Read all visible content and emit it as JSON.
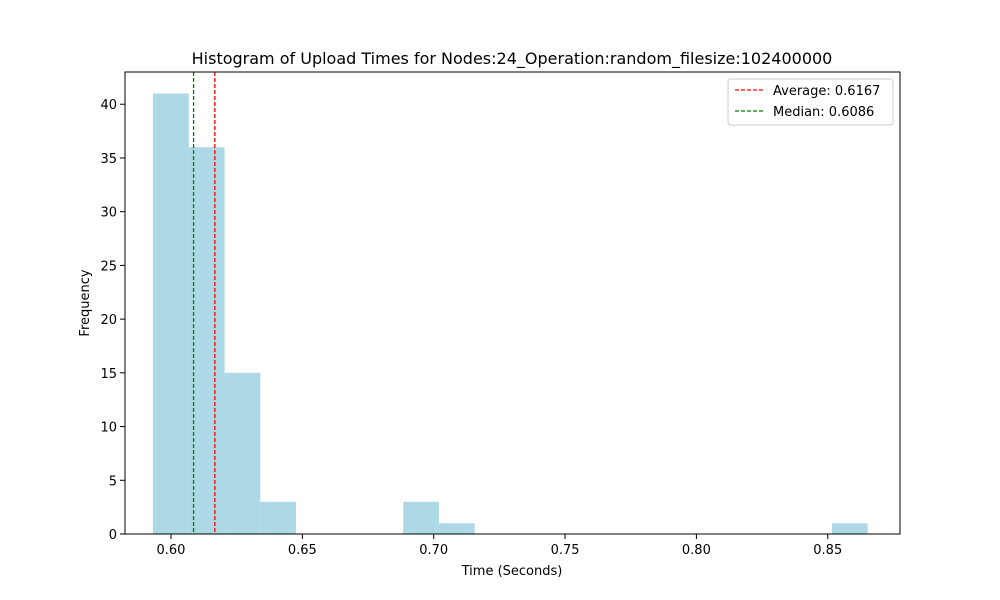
{
  "chart_data": {
    "type": "bar",
    "title": "Histogram of Upload Times for Nodes:24_Operation:random_filesize:102400000",
    "xlabel": "Time (Seconds)",
    "ylabel": "Frequency",
    "xlim": [
      0.5825,
      0.8775
    ],
    "ylim": [
      0,
      43
    ],
    "xticks": [
      0.6,
      0.65,
      0.7,
      0.75,
      0.8,
      0.85
    ],
    "xtick_labels": [
      "0.60",
      "0.65",
      "0.70",
      "0.75",
      "0.80",
      "0.85"
    ],
    "yticks": [
      0,
      5,
      10,
      15,
      20,
      25,
      30,
      35,
      40
    ],
    "ytick_labels": [
      "0",
      "5",
      "10",
      "15",
      "20",
      "25",
      "30",
      "35",
      "40"
    ],
    "bins": [
      {
        "start": 0.5931,
        "end": 0.6068,
        "count": 41
      },
      {
        "start": 0.6068,
        "end": 0.6204,
        "count": 36
      },
      {
        "start": 0.6204,
        "end": 0.634,
        "count": 15
      },
      {
        "start": 0.634,
        "end": 0.6476,
        "count": 3
      },
      {
        "start": 0.6476,
        "end": 0.6612,
        "count": 0
      },
      {
        "start": 0.6612,
        "end": 0.6748,
        "count": 0
      },
      {
        "start": 0.6748,
        "end": 0.6884,
        "count": 0
      },
      {
        "start": 0.6884,
        "end": 0.702,
        "count": 3
      },
      {
        "start": 0.702,
        "end": 0.7156,
        "count": 1
      },
      {
        "start": 0.7156,
        "end": 0.7292,
        "count": 0
      },
      {
        "start": 0.7292,
        "end": 0.7428,
        "count": 0
      },
      {
        "start": 0.7428,
        "end": 0.7564,
        "count": 0
      },
      {
        "start": 0.7564,
        "end": 0.77,
        "count": 0
      },
      {
        "start": 0.77,
        "end": 0.7836,
        "count": 0
      },
      {
        "start": 0.7836,
        "end": 0.7972,
        "count": 0
      },
      {
        "start": 0.7972,
        "end": 0.8108,
        "count": 0
      },
      {
        "start": 0.8108,
        "end": 0.8244,
        "count": 0
      },
      {
        "start": 0.8244,
        "end": 0.838,
        "count": 0
      },
      {
        "start": 0.838,
        "end": 0.8516,
        "count": 0
      },
      {
        "start": 0.8516,
        "end": 0.8652,
        "count": 1
      }
    ],
    "bar_color": "#add8e6",
    "lines": [
      {
        "name": "average",
        "label": "Average: 0.6167",
        "x": 0.6167,
        "color": "#ff0000",
        "style": "dashed"
      },
      {
        "name": "median",
        "label": "Median: 0.6086",
        "x": 0.6086,
        "color": "#008000",
        "style": "dashed"
      }
    ],
    "legend_position": "upper-right",
    "grid": false
  }
}
